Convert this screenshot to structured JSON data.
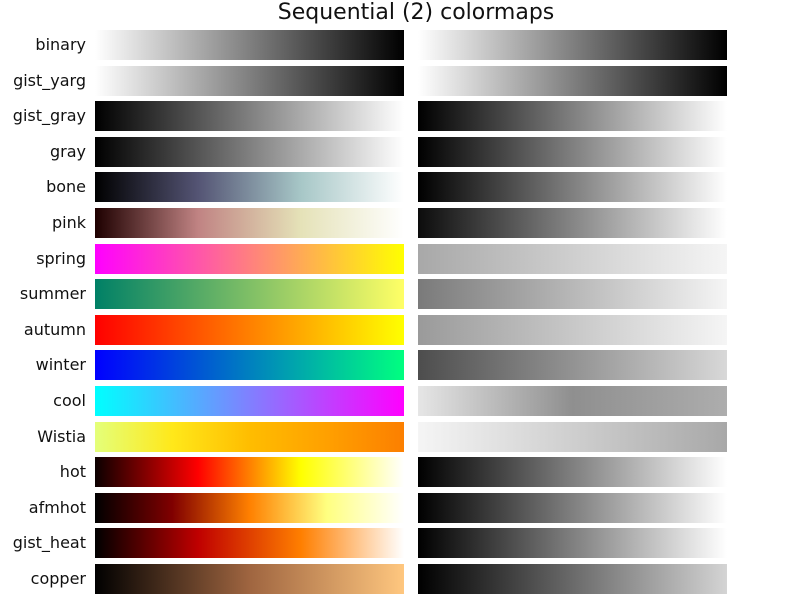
{
  "chart_data": {
    "type": "heatmap",
    "title": "Sequential (2) colormaps",
    "xlabel": "",
    "ylabel": "",
    "grid": false,
    "legend": "none",
    "panels": [
      "colormap",
      "grayscale"
    ],
    "colormaps": [
      {
        "name": "binary",
        "stops": [
          "#ffffff",
          "#000000"
        ],
        "gray_stops": [
          "#ffffff",
          "#000000"
        ]
      },
      {
        "name": "gist_yarg",
        "stops": [
          "#ffffff",
          "#000000"
        ],
        "gray_stops": [
          "#ffffff",
          "#000000"
        ]
      },
      {
        "name": "gist_gray",
        "stops": [
          "#000000",
          "#ffffff"
        ],
        "gray_stops": [
          "#000000",
          "#ffffff"
        ]
      },
      {
        "name": "gray",
        "stops": [
          "#000000",
          "#ffffff"
        ],
        "gray_stops": [
          "#000000",
          "#ffffff"
        ]
      },
      {
        "name": "bone",
        "stops": [
          "#000000",
          "#545474",
          "#a7c7c7",
          "#ffffff"
        ],
        "gray_stops": [
          "#000000",
          "#ffffff"
        ]
      },
      {
        "name": "pink",
        "stops": [
          "#1e0000",
          "#c08383",
          "#e5e2b8",
          "#ffffff"
        ],
        "gray_stops": [
          "#0c0c0c",
          "#ffffff"
        ]
      },
      {
        "name": "spring",
        "stops": [
          "#ff00ff",
          "#ffff00"
        ],
        "gray_stops": [
          "#a8a8a8",
          "#f5f5f5"
        ]
      },
      {
        "name": "summer",
        "stops": [
          "#008066",
          "#7fbf66",
          "#ffff66"
        ],
        "gray_stops": [
          "#7a7a7a",
          "#f5f5f5"
        ]
      },
      {
        "name": "autumn",
        "stops": [
          "#ff0000",
          "#ff8000",
          "#ffff00"
        ],
        "gray_stops": [
          "#9a9a9a",
          "#f5f5f5"
        ]
      },
      {
        "name": "winter",
        "stops": [
          "#0000ff",
          "#0080bf",
          "#00ff80"
        ],
        "gray_stops": [
          "#4d4d4d",
          "#d8d8d8"
        ]
      },
      {
        "name": "cool",
        "stops": [
          "#00ffff",
          "#8080ff",
          "#ff00ff"
        ],
        "gray_stops": [
          "#e6e6e6",
          "#8f8f8f",
          "#adadad"
        ]
      },
      {
        "name": "Wistia",
        "stops": [
          "#e4ff7a",
          "#ffe81a",
          "#ffbd00",
          "#ffa000",
          "#fc7f00"
        ],
        "gray_stops": [
          "#f5f5f5",
          "#a8a8a8"
        ]
      },
      {
        "name": "hot",
        "stops": [
          "#0b0000",
          "#ff0000",
          "#ffff00",
          "#ffffff"
        ],
        "gray_stops": [
          "#000000",
          "#ffffff"
        ]
      },
      {
        "name": "afmhot",
        "stops": [
          "#000000",
          "#800000",
          "#ff8000",
          "#ffff80",
          "#ffffff"
        ],
        "gray_stops": [
          "#000000",
          "#ffffff"
        ]
      },
      {
        "name": "gist_heat",
        "stops": [
          "#000000",
          "#bf0000",
          "#ff7f00",
          "#ffffff"
        ],
        "gray_stops": [
          "#000000",
          "#ffffff"
        ]
      },
      {
        "name": "copper",
        "stops": [
          "#000000",
          "#9f6540",
          "#ffc77f"
        ],
        "gray_stops": [
          "#000000",
          "#d4d4d4"
        ]
      }
    ]
  }
}
